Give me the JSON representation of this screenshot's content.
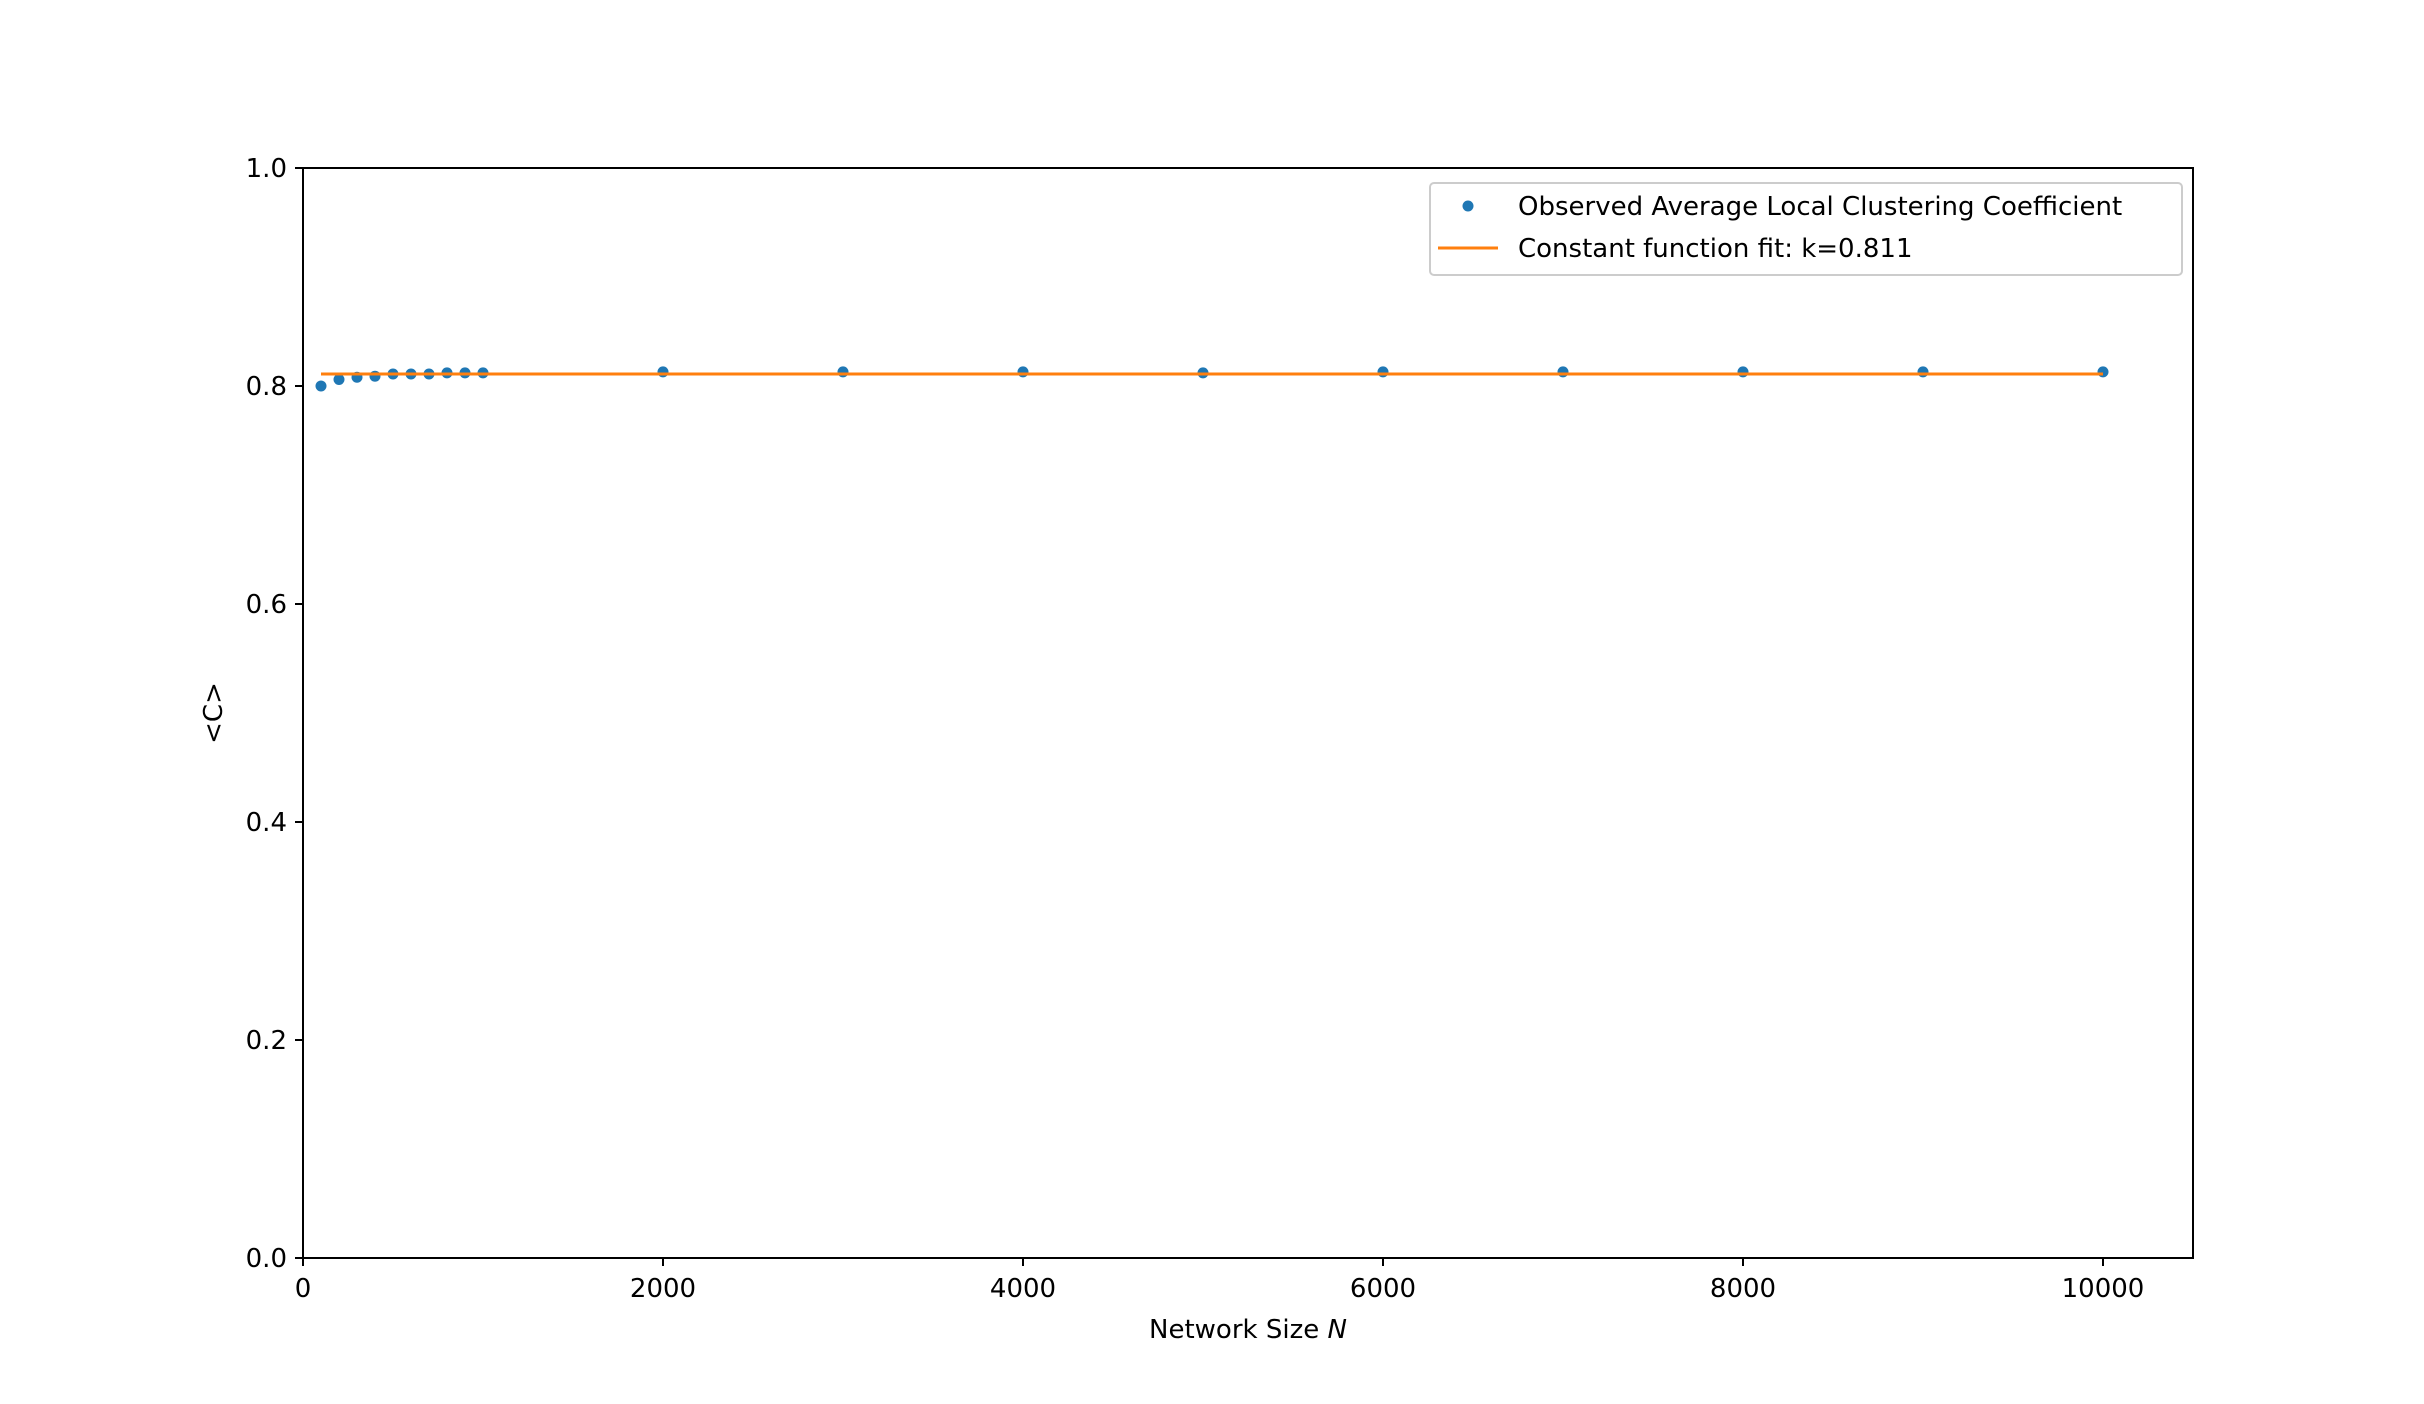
{
  "chart_data": {
    "type": "scatter",
    "xlabel": "Network Size",
    "xlabel_var": "N",
    "ylabel": "<C>",
    "xlim": [
      0,
      10500
    ],
    "ylim": [
      0.0,
      1.0
    ],
    "x_ticks": [
      0,
      2000,
      4000,
      6000,
      8000,
      10000
    ],
    "x_tick_labels": [
      "0",
      "2000",
      "4000",
      "6000",
      "8000",
      "10000"
    ],
    "y_ticks": [
      0.0,
      0.2,
      0.4,
      0.6,
      0.8,
      1.0
    ],
    "y_tick_labels": [
      "0.0",
      "0.2",
      "0.4",
      "0.6",
      "0.8",
      "1.0"
    ],
    "grid": false,
    "legend_position": "top-right",
    "series": [
      {
        "name": "Observed Average Local Clustering Coefficient",
        "kind": "scatter",
        "color": "#1f77b4",
        "x": [
          100,
          200,
          300,
          400,
          500,
          600,
          700,
          800,
          900,
          1000,
          2000,
          3000,
          4000,
          5000,
          6000,
          7000,
          8000,
          9000,
          10000
        ],
        "y": [
          0.8,
          0.806,
          0.808,
          0.809,
          0.811,
          0.811,
          0.811,
          0.812,
          0.812,
          0.812,
          0.813,
          0.813,
          0.813,
          0.812,
          0.813,
          0.813,
          0.813,
          0.813,
          0.813
        ]
      },
      {
        "name": "Constant function fit: k=0.811",
        "kind": "line",
        "color": "#ff7f0e",
        "x": [
          100,
          10000
        ],
        "y": [
          0.811,
          0.811
        ]
      }
    ]
  }
}
